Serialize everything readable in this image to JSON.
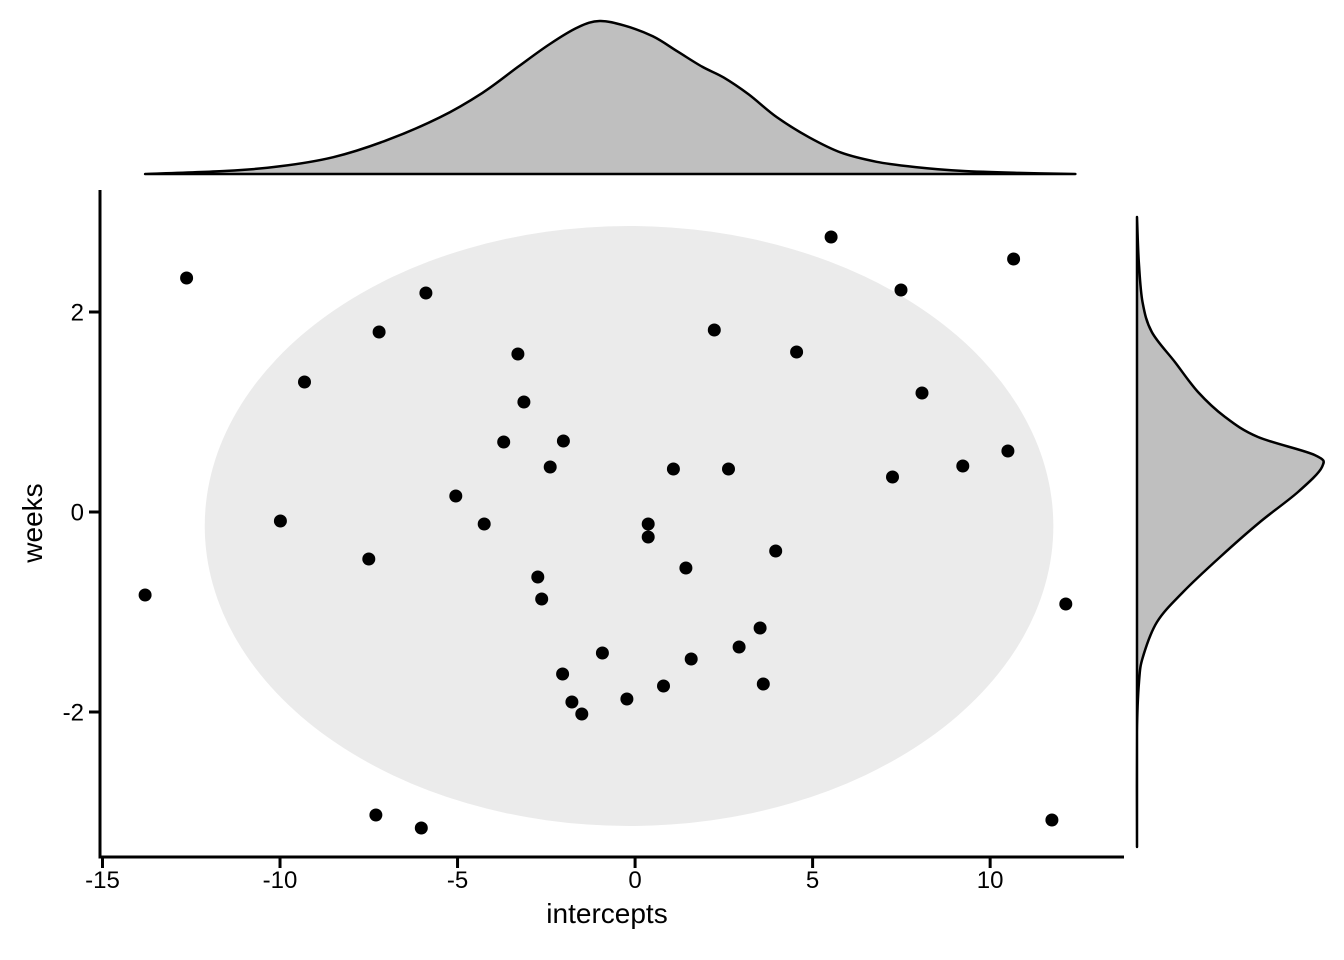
{
  "chart_data": {
    "type": "scatter",
    "title": "",
    "xlabel": "intercepts",
    "ylabel": "weeks",
    "xlim": [
      -15.07,
      13.77
    ],
    "ylim": [
      -3.45,
      3.22
    ],
    "x_ticks": [
      -15,
      -10,
      -5,
      0,
      5,
      10
    ],
    "y_ticks": [
      2,
      0,
      -2
    ],
    "grid": false,
    "legend": false,
    "marginals": "density curves on top (intercepts) and right (weeks)",
    "points": [
      [
        -13.8,
        -0.83
      ],
      [
        -12.63,
        2.34
      ],
      [
        -9.99,
        -0.09
      ],
      [
        -9.31,
        1.3
      ],
      [
        -7.5,
        -0.47
      ],
      [
        -7.3,
        -3.03
      ],
      [
        -7.21,
        1.8
      ],
      [
        -6.02,
        -3.16
      ],
      [
        -5.89,
        2.19
      ],
      [
        -5.05,
        0.16
      ],
      [
        -4.25,
        -0.12
      ],
      [
        -3.7,
        0.7
      ],
      [
        -3.3,
        1.58
      ],
      [
        -3.13,
        1.1
      ],
      [
        -2.74,
        -0.65
      ],
      [
        -2.63,
        -0.87
      ],
      [
        -2.39,
        0.45
      ],
      [
        -2.04,
        -1.62
      ],
      [
        -2.02,
        0.71
      ],
      [
        -1.78,
        -1.9
      ],
      [
        -1.5,
        -2.02
      ],
      [
        -0.92,
        -1.41
      ],
      [
        -0.23,
        -1.87
      ],
      [
        0.37,
        -0.12
      ],
      [
        0.37,
        -0.25
      ],
      [
        0.8,
        -1.74
      ],
      [
        1.08,
        0.43
      ],
      [
        1.43,
        -0.56
      ],
      [
        1.58,
        -1.47
      ],
      [
        2.23,
        1.82
      ],
      [
        2.63,
        0.43
      ],
      [
        2.93,
        -1.35
      ],
      [
        3.52,
        -1.16
      ],
      [
        3.61,
        -1.72
      ],
      [
        3.96,
        -0.39
      ],
      [
        4.55,
        1.6
      ],
      [
        5.52,
        2.75
      ],
      [
        7.25,
        0.35
      ],
      [
        7.49,
        2.22
      ],
      [
        8.08,
        1.19
      ],
      [
        9.23,
        0.46
      ],
      [
        10.5,
        0.61
      ],
      [
        10.66,
        2.53
      ],
      [
        11.74,
        -3.08
      ],
      [
        12.13,
        -0.92
      ]
    ],
    "ellipse": {
      "cx": -0.17,
      "cy": -0.14,
      "rx": 11.95,
      "ry": 3.0
    },
    "top_density": {
      "x": [
        -13.8,
        -11.5,
        -10.0,
        -8.5,
        -7.0,
        -5.5,
        -4.3,
        -3.3,
        -2.4,
        -1.6,
        -1.0,
        -0.3,
        0.5,
        1.2,
        1.9,
        2.5,
        3.2,
        4.0,
        4.9,
        5.8,
        6.8,
        7.9,
        9.2,
        10.8,
        12.4
      ],
      "h": [
        0.0,
        0.02,
        0.05,
        0.11,
        0.22,
        0.37,
        0.53,
        0.7,
        0.85,
        0.96,
        1.0,
        0.97,
        0.9,
        0.8,
        0.7,
        0.63,
        0.52,
        0.37,
        0.24,
        0.14,
        0.08,
        0.045,
        0.02,
        0.007,
        0.0
      ]
    },
    "right_density": {
      "y": [
        2.95,
        2.5,
        2.1,
        1.8,
        1.5,
        1.2,
        0.95,
        0.75,
        0.57,
        0.45,
        0.2,
        -0.1,
        -0.45,
        -0.8,
        -1.1,
        -1.45,
        -1.7,
        -2.2,
        -3.35
      ],
      "w": [
        0.0,
        0.01,
        0.03,
        0.08,
        0.205,
        0.33,
        0.476,
        0.654,
        0.96,
        1.0,
        0.87,
        0.665,
        0.449,
        0.249,
        0.108,
        0.032,
        0.011,
        0.0,
        0.0
      ]
    },
    "colors": {
      "point": "#000000",
      "ellipse_fill": "#ebebeb",
      "density_fill": "#bfbfbf",
      "stroke": "#000000",
      "background": "#ffffff"
    }
  }
}
